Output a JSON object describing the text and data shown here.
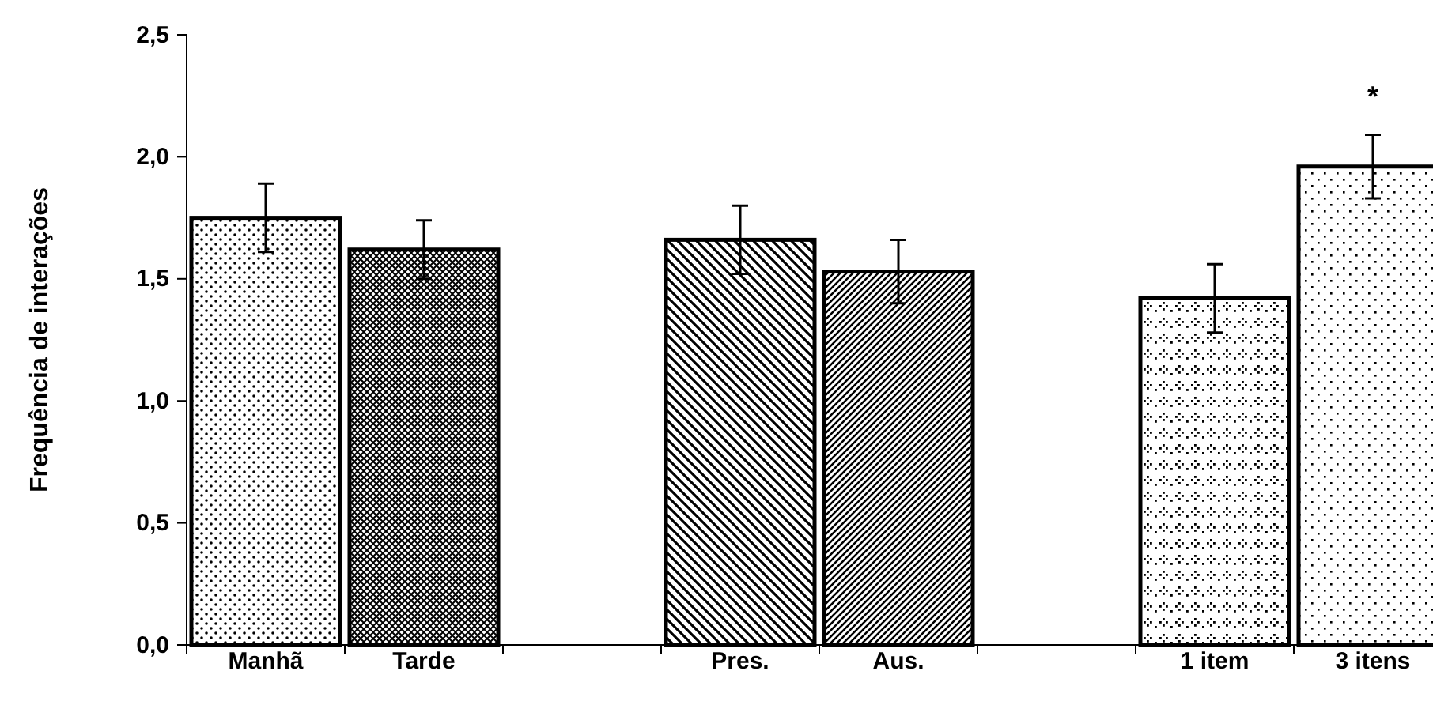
{
  "chart_data": {
    "type": "bar",
    "ylabel": "Frequência de interações",
    "categories": [
      "Manhã",
      "Tarde",
      null,
      "Pres.",
      "Aus.",
      null,
      "1 item",
      "3 itens"
    ],
    "values": [
      1.75,
      1.62,
      null,
      1.66,
      1.53,
      null,
      1.42,
      1.96
    ],
    "errors": [
      0.14,
      0.12,
      null,
      0.14,
      0.13,
      null,
      0.14,
      0.13
    ],
    "colors": [
      "#000000",
      "#000000",
      null,
      "#000000",
      "#000000",
      null,
      "#000000",
      "#000000"
    ],
    "ylim": [
      0,
      2.5
    ],
    "yticks": [
      {
        "value": 0,
        "label": "0,0"
      },
      {
        "value": 0.5,
        "label": "0,5"
      },
      {
        "value": 1,
        "label": "1,0"
      },
      {
        "value": 1.5,
        "label": "1,5"
      },
      {
        "value": 2,
        "label": "2,0"
      },
      {
        "value": 2.5,
        "label": "2,5"
      }
    ],
    "annotations": [
      "*"
    ]
  }
}
